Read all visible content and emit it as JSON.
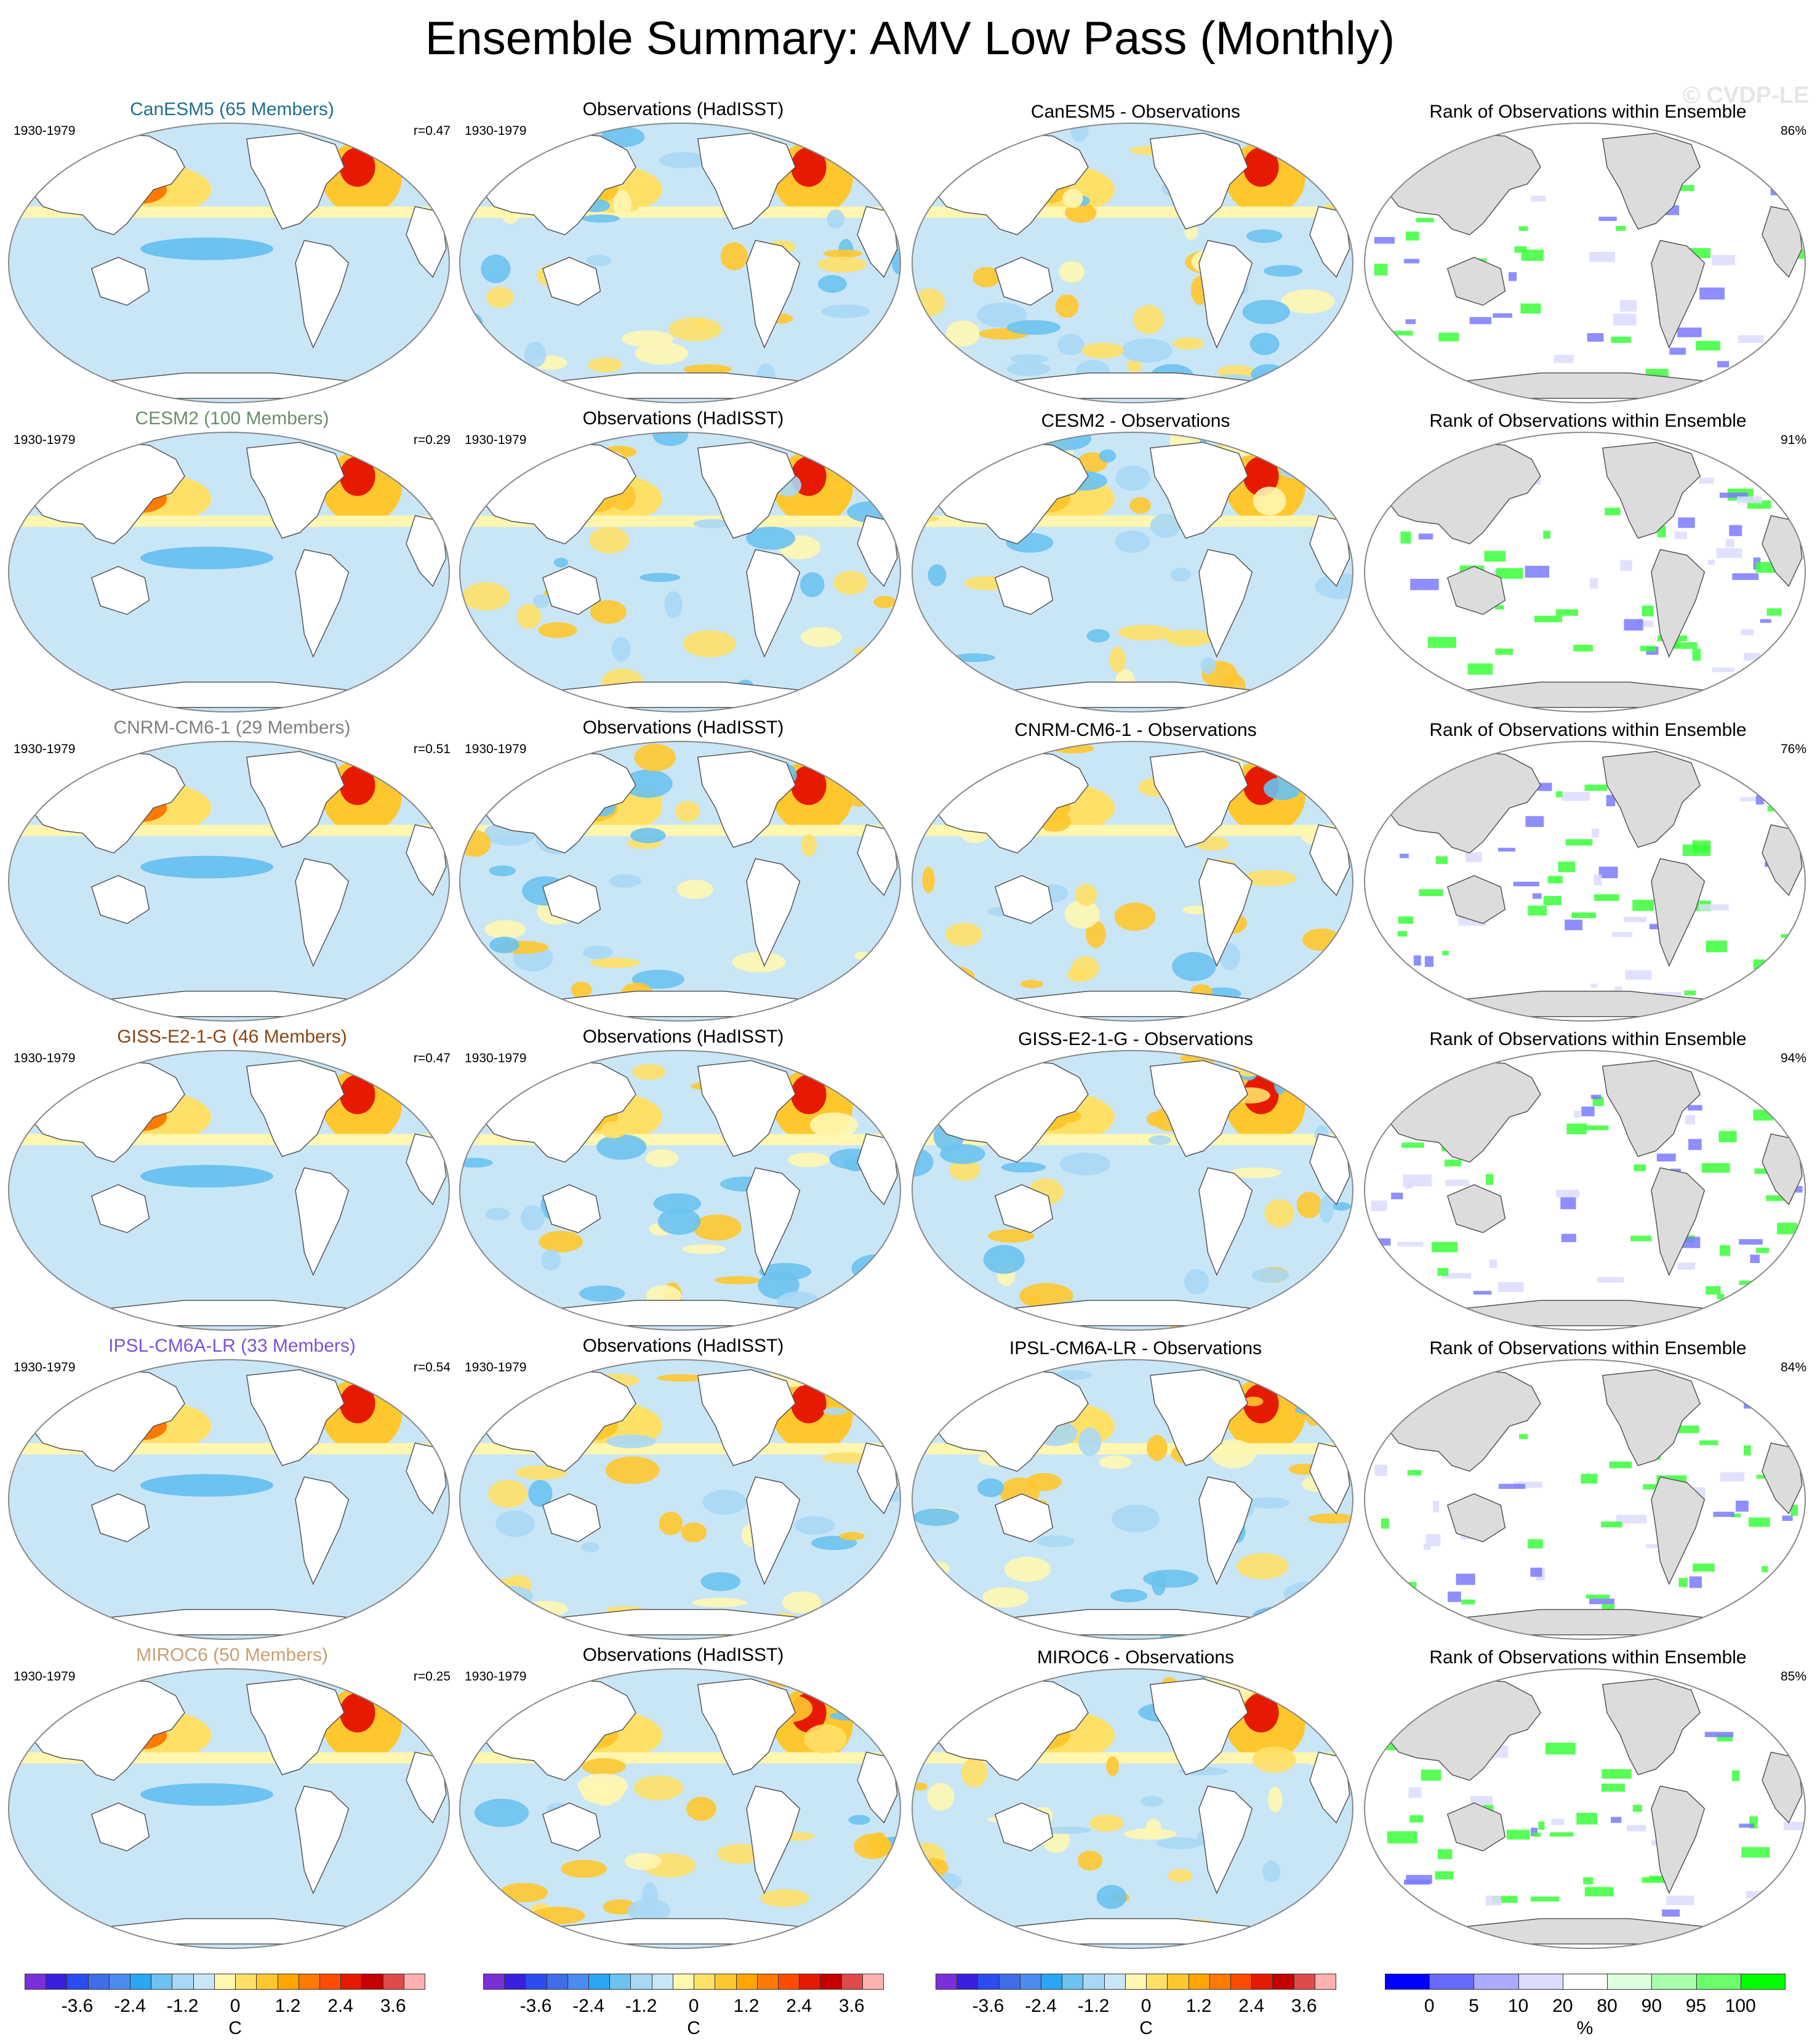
{
  "title": "Ensemble Summary: AMV Low Pass (Monthly)",
  "watermark": "© CVDP-LE",
  "period": "1930-1979",
  "rows": [
    {
      "model": "CanESM5 (65 Members)",
      "model_color": "#1f6f8b",
      "r": "r=0.47",
      "obs_title": "Observations (HadISST)",
      "diff_title": "CanESM5 - Observations",
      "rank_title": "Rank of Observations within Ensemble",
      "rank_pct": "86%"
    },
    {
      "model": "CESM2 (100 Members)",
      "model_color": "#6b8e6b",
      "r": "r=0.29",
      "obs_title": "Observations (HadISST)",
      "diff_title": "CESM2 - Observations",
      "rank_title": "Rank of Observations within Ensemble",
      "rank_pct": "91%"
    },
    {
      "model": "CNRM-CM6-1 (29 Members)",
      "model_color": "#808080",
      "r": "r=0.51",
      "obs_title": "Observations (HadISST)",
      "diff_title": "CNRM-CM6-1 - Observations",
      "rank_title": "Rank of Observations within Ensemble",
      "rank_pct": "76%"
    },
    {
      "model": "GISS-E2-1-G (46 Members)",
      "model_color": "#8b4513",
      "r": "r=0.47",
      "obs_title": "Observations (HadISST)",
      "diff_title": "GISS-E2-1-G - Observations",
      "rank_title": "Rank of Observations within Ensemble",
      "rank_pct": "94%"
    },
    {
      "model": "IPSL-CM6A-LR (33 Members)",
      "model_color": "#7b52d9",
      "r": "r=0.54",
      "obs_title": "Observations (HadISST)",
      "diff_title": "IPSL-CM6A-LR - Observations",
      "rank_title": "Rank of Observations within Ensemble",
      "rank_pct": "84%"
    },
    {
      "model": "MIROC6 (50 Members)",
      "model_color": "#c9a070",
      "r": "r=0.25",
      "obs_title": "Observations (HadISST)",
      "diff_title": "MIROC6 - Observations",
      "rank_title": "Rank of Observations within Ensemble",
      "rank_pct": "85%"
    }
  ],
  "colorbars": {
    "sst": {
      "colors": [
        "#7b2fd8",
        "#3a1fe0",
        "#2b4cf0",
        "#3f6ee8",
        "#4a8cf2",
        "#2aa6f5",
        "#6cc2f0",
        "#a8d8f5",
        "#c9e6f7",
        "#fff6b0",
        "#ffe066",
        "#ffc72e",
        "#ffa500",
        "#ff7a00",
        "#ff4c00",
        "#e61a00",
        "#c40000",
        "#e04a4a",
        "#ffb0b0"
      ],
      "ticks": [
        "-3.6",
        "-2.4",
        "-1.2",
        "0",
        "1.2",
        "2.4",
        "3.6"
      ],
      "unit": "C"
    },
    "rank": {
      "colors": [
        "#0000ff",
        "#6a6aff",
        "#aaaaff",
        "#dcdcff",
        "#ffffff",
        "#dcffdc",
        "#aaffaa",
        "#6aff6a",
        "#00ff00"
      ],
      "ticks": [
        "0",
        "5",
        "10",
        "20",
        "80",
        "90",
        "95",
        "100"
      ],
      "unit": "%"
    }
  }
}
